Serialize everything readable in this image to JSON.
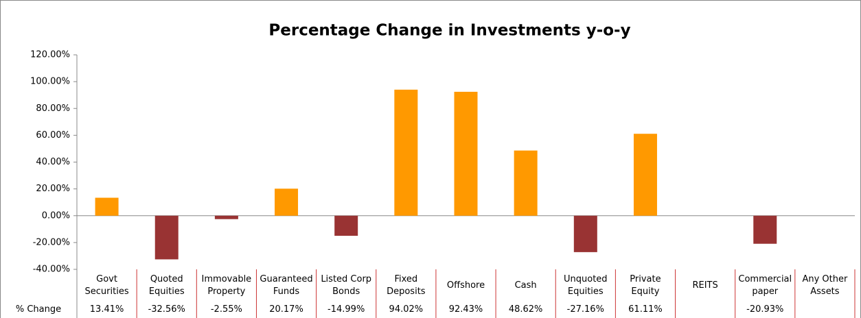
{
  "chart_data": {
    "type": "bar",
    "title": "Percentage Change in Investments y-o-y",
    "categories": [
      "Govt Securities",
      "Quoted Equities",
      "Immovable Property",
      "Guaranteed Funds",
      "Listed Corp Bonds",
      "Fixed Deposits",
      "Offshore",
      "Cash",
      "Unquoted Equities",
      "Private Equity",
      "REITS",
      "Commercial paper",
      "Any Other Assets"
    ],
    "values": [
      13.41,
      -32.56,
      -2.55,
      20.17,
      -14.99,
      94.02,
      92.43,
      48.62,
      -27.16,
      61.11,
      null,
      -20.93,
      null
    ],
    "value_labels": [
      "13.41%",
      "-32.56%",
      "-2.55%",
      "20.17%",
      "-14.99%",
      "94.02%",
      "92.43%",
      "48.62%",
      "-27.16%",
      "61.11%",
      null,
      "-20.93%",
      null
    ],
    "table_row_label": "% Change",
    "color": "#ff9900",
    "negative_color": "#993333",
    "ylim": [
      -40,
      120
    ],
    "yticks": [
      {
        "value": -40,
        "label": "-40.00%"
      },
      {
        "value": -20,
        "label": "-20.00%"
      },
      {
        "value": 0,
        "label": "0.00%"
      },
      {
        "value": 20,
        "label": "20.00%"
      },
      {
        "value": 40,
        "label": "40.00%"
      },
      {
        "value": 60,
        "label": "60.00%"
      },
      {
        "value": 80,
        "label": "80.00%"
      },
      {
        "value": 100,
        "label": "100.00%"
      },
      {
        "value": 120,
        "label": "120.00%"
      }
    ],
    "grid": false
  }
}
